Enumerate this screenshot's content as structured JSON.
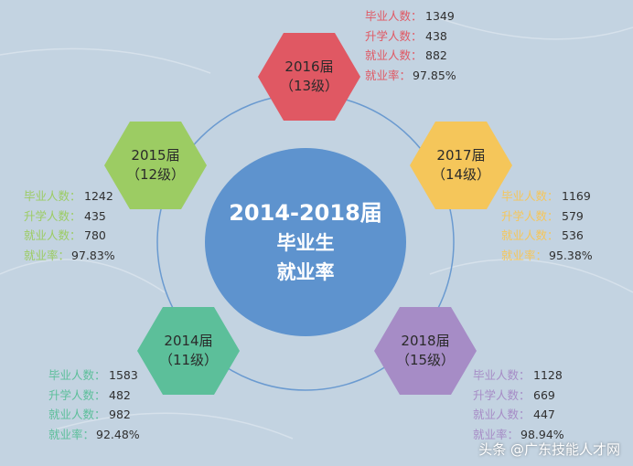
{
  "center": {
    "line1": "2014-2018届",
    "line2": "毕业生",
    "line3": "就业率"
  },
  "label_grad": "毕业人数：",
  "label_study": "升学人数：",
  "label_employ": "就业人数：",
  "label_rate": "就业率：",
  "groups": [
    {
      "id": "2016",
      "color": "#e05863",
      "title": "2016届",
      "sub": "（13级）",
      "graduates": "1349",
      "further_study": "438",
      "employed": "882",
      "rate": "97.85%"
    },
    {
      "id": "2017",
      "color": "#f5c65a",
      "title": "2017届",
      "sub": "（14级）",
      "graduates": "1169",
      "further_study": "579",
      "employed": "536",
      "rate": "95.38%"
    },
    {
      "id": "2018",
      "color": "#a68cc6",
      "title": "2018届",
      "sub": "（15级）",
      "graduates": "1128",
      "further_study": "669",
      "employed": "447",
      "rate": "98.94%"
    },
    {
      "id": "2014",
      "color": "#5cbf9a",
      "title": "2014届",
      "sub": "（11级）",
      "graduates": "1583",
      "further_study": "482",
      "employed": "982",
      "rate": "92.48%"
    },
    {
      "id": "2015",
      "color": "#9ccc63",
      "title": "2015届",
      "sub": "（12级）",
      "graduates": "1242",
      "further_study": "435",
      "employed": "780",
      "rate": "97.83%"
    }
  ],
  "watermark": "头条 @广东技能人才网"
}
